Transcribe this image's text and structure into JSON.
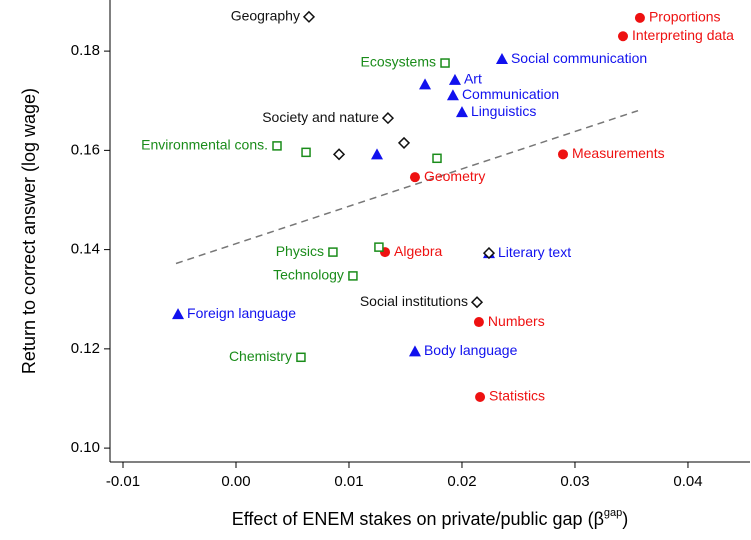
{
  "chart_data": {
    "type": "scatter",
    "xlabel": "Effect of ENEM stakes on private/public gap (β",
    "xlabel_sup": "gap",
    "xlabel_end": ")",
    "ylabel": "Return to correct answer (log wage)",
    "xlim": [
      -0.01115,
      0.04549
    ],
    "ylim": [
      0.0972,
      0.1903
    ],
    "xticks": [
      -0.01,
      {
        "value": 0,
        "label": "0.00"
      },
      0.01,
      0.02,
      0.03,
      0.04
    ],
    "yticks": [
      {
        "value": 0.1,
        "label": "0.10"
      },
      0.12,
      0.14,
      0.16,
      0.18
    ],
    "series": [
      {
        "color": "#ee1111",
        "marker": "circle",
        "x": [
          0.03575,
          0.03425,
          0.02894,
          0.01584,
          0.01319,
          0.0215,
          0.0216
        ],
        "values": [
          0.1867,
          0.183,
          0.1592,
          0.1546,
          0.1395,
          0.1254,
          0.1103
        ],
        "labels": [
          "Proportions",
          "Interpreting data",
          "Measurements",
          "Geometry",
          "Algebra",
          "Numbers",
          "Statistics"
        ]
      },
      {
        "color": "#1111ee",
        "marker": "triangle",
        "x": [
          0.02354,
          0.01938,
          0.01673,
          0.0192,
          0.02,
          0.01248,
          0.02239,
          -0.00513,
          0.01584
        ],
        "values": [
          0.1784,
          0.1742,
          0.1733,
          0.1711,
          0.1677,
          0.1592,
          0.1393,
          0.127,
          0.1195
        ],
        "labels": [
          "Social communication",
          "Art",
          null,
          "Communication",
          "Linguistics",
          null,
          "Literary text",
          "Foreign language",
          "Body language"
        ]
      },
      {
        "color": "#111111",
        "marker": "diamond",
        "x": [
          0.00646,
          0.01345,
          0.01487,
          0.00912,
          0.02133,
          0.02239
        ],
        "values": [
          0.1869,
          0.1665,
          0.1615,
          0.1592,
          0.1294,
          0.1393
        ],
        "labels": [
          "Geography",
          "Society and nature",
          null,
          null,
          "Social institutions",
          null
        ]
      },
      {
        "color": "#1a8c1a",
        "marker": "square",
        "x": [
          0.0185,
          0.00363,
          0.0062,
          0.01779,
          0.00858,
          0.01265,
          0.01035,
          0.00575
        ],
        "values": [
          0.1776,
          0.1609,
          0.1596,
          0.1584,
          0.1395,
          0.1405,
          0.1347,
          0.1183
        ],
        "labels": [
          "Ecosystems",
          "Environmental cons.",
          null,
          null,
          "Physics",
          null,
          "Technology",
          "Chemistry"
        ]
      }
    ],
    "fit_line": {
      "color": "#777777",
      "x": [
        -0.00531,
        0.03558
      ],
      "values": [
        0.1372,
        0.168
      ]
    }
  }
}
